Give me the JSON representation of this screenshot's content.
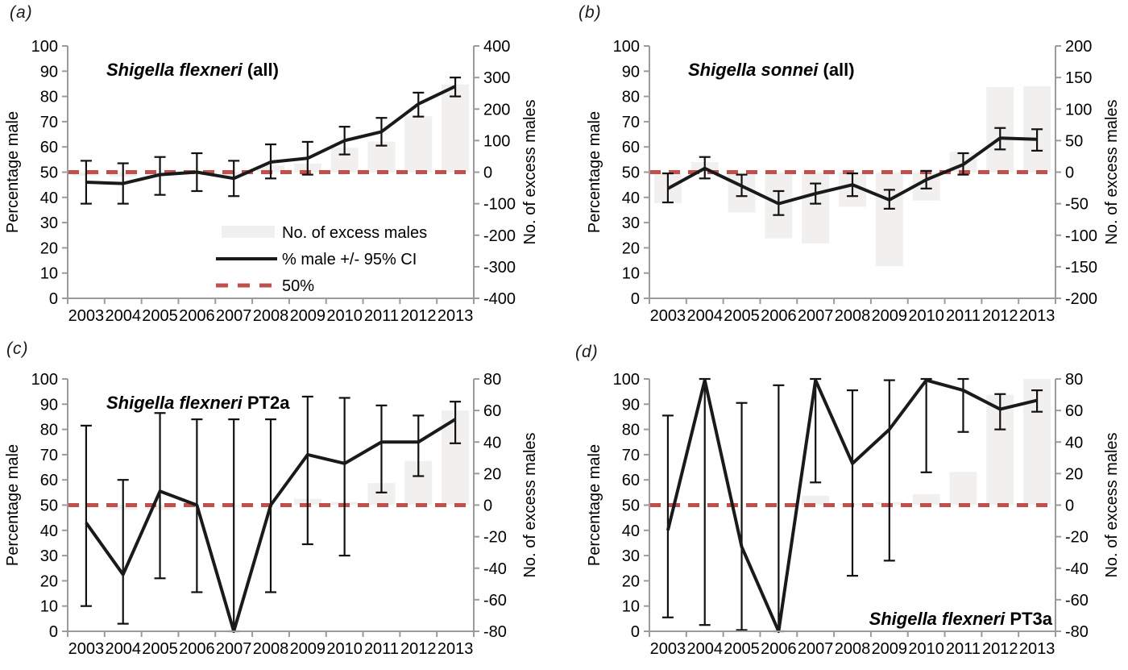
{
  "figure": {
    "left_axis_title": "Percentage male",
    "right_axis_title": "No. of excess males",
    "legend": {
      "bar_label": "No. of excess males",
      "line_label": "% male +/- 95% CI",
      "dashed_label": "50%"
    },
    "colors": {
      "line": "#1a1a1a",
      "error_bar": "#111111",
      "dashed_50": "#c0504d",
      "bar_fill": "#f1f0ee",
      "axis": "#9b9b9b",
      "text": "#000000"
    }
  },
  "chart_data": [
    {
      "type": "line+bar",
      "tag": "(a)",
      "title_italic": "Shigella flexneri",
      "title_plain": " (all)",
      "title_position": "top-left",
      "show_legend": true,
      "x": [
        "2003",
        "2004",
        "2005",
        "2006",
        "2007",
        "2008",
        "2009",
        "2010",
        "2011",
        "2012",
        "2013"
      ],
      "left_axis": {
        "min": 0,
        "max": 100,
        "step": 10
      },
      "right_axis": {
        "min": -400,
        "max": 400,
        "step": 100
      },
      "percent_male": [
        46,
        45.5,
        49,
        50,
        47.5,
        54,
        55.5,
        62.5,
        66,
        77,
        84
      ],
      "ci_low": [
        37.5,
        37.5,
        41,
        42.5,
        40.5,
        47.5,
        49,
        57,
        60.5,
        72,
        80
      ],
      "ci_high": [
        54.5,
        53.5,
        56,
        57.5,
        54.5,
        61,
        62,
        68,
        71.5,
        81.5,
        87.5
      ],
      "excess_males": [
        -12,
        -14,
        -4,
        -1,
        -13,
        21,
        27,
        77,
        97,
        177,
        278
      ],
      "reference_line_pct": 50
    },
    {
      "type": "line+bar",
      "tag": "(b)",
      "title_italic": "Shigella sonnei",
      "title_plain": " (all)",
      "title_position": "top-left",
      "show_legend": false,
      "x": [
        "2003",
        "2004",
        "2005",
        "2006",
        "2007",
        "2008",
        "2009",
        "2010",
        "2011",
        "2012",
        "2013"
      ],
      "left_axis": {
        "min": 0,
        "max": 100,
        "step": 10
      },
      "right_axis": {
        "min": -200,
        "max": 200,
        "step": 50
      },
      "percent_male": [
        43.5,
        51.5,
        44.5,
        37.5,
        41.5,
        45,
        39,
        47,
        53,
        63.5,
        63
      ],
      "ci_low": [
        38,
        47.5,
        40.5,
        33,
        37.5,
        40.5,
        35.5,
        43.5,
        49,
        59,
        58.5
      ],
      "ci_high": [
        49.5,
        56,
        49,
        42.5,
        45.5,
        49.5,
        43,
        50.5,
        57.5,
        67.5,
        67
      ],
      "excess_males": [
        -49,
        16,
        -64,
        -105,
        -113,
        -55,
        -149,
        -45,
        32,
        135,
        136
      ],
      "reference_line_pct": 50
    },
    {
      "type": "line+bar",
      "tag": "(c)",
      "title_italic": "Shigella flexneri",
      "title_plain": " PT2a",
      "title_position": "top-left",
      "show_legend": false,
      "x": [
        "2003",
        "2004",
        "2005",
        "2006",
        "2007",
        "2008",
        "2009",
        "2010",
        "2011",
        "2012",
        "2013"
      ],
      "left_axis": {
        "min": 0,
        "max": 100,
        "step": 10
      },
      "right_axis": {
        "min": -80,
        "max": 80,
        "step": 20
      },
      "percent_male": [
        43,
        22.5,
        55.5,
        50,
        0,
        50,
        70,
        66.5,
        75,
        75,
        84
      ],
      "ci_low": [
        10,
        3,
        21,
        15.5,
        0,
        15.5,
        34.5,
        30,
        55,
        61.5,
        74.5
      ],
      "ci_high": [
        81.5,
        60,
        86.5,
        84,
        84,
        84,
        93,
        92.5,
        89.5,
        85.5,
        91
      ],
      "excess_males": [
        0,
        -3,
        -3,
        0,
        -1,
        0,
        4,
        2,
        14,
        28,
        60
      ],
      "reference_line_pct": 50
    },
    {
      "type": "line+bar",
      "tag": "(d)",
      "title_italic": "Shigella flexneri",
      "title_plain": " PT3a",
      "title_position": "bottom-right",
      "show_legend": false,
      "x": [
        "2003",
        "2004",
        "2005",
        "2006",
        "2007",
        "2008",
        "2009",
        "2010",
        "2011",
        "2012",
        "2013"
      ],
      "left_axis": {
        "min": 0,
        "max": 100,
        "step": 10
      },
      "right_axis": {
        "min": -80,
        "max": 80,
        "step": 20
      },
      "percent_male": [
        40,
        99.5,
        33.5,
        0,
        99.5,
        66.5,
        80,
        99.5,
        95.5,
        88,
        91.5
      ],
      "ci_low": [
        5.5,
        2.5,
        0.5,
        0,
        59,
        22,
        28,
        63,
        79,
        80,
        87
      ],
      "ci_high": [
        85.5,
        100,
        90.5,
        97.5,
        100,
        95.5,
        99.5,
        100,
        100,
        94,
        95.5
      ],
      "excess_males": [
        0,
        0,
        0,
        0,
        6,
        1,
        2,
        7,
        21,
        70,
        80
      ],
      "reference_line_pct": 50
    }
  ]
}
